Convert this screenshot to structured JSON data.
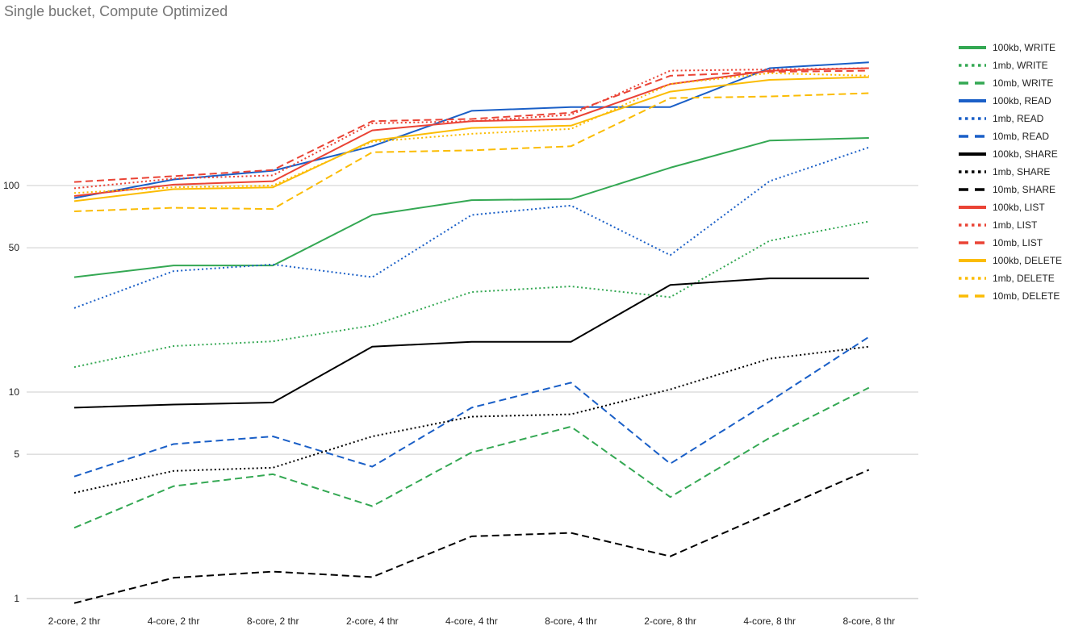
{
  "chart_data": {
    "type": "line",
    "title": "Single bucket, Compute Optimized",
    "xlabel": "",
    "ylabel": "",
    "y_scale": "log",
    "ylim": [
      0.9,
      400
    ],
    "y_ticks": [
      1,
      5,
      10,
      50,
      100
    ],
    "grid": true,
    "legend_position": "right",
    "categories": [
      "2-core, 2 thr",
      "4-core, 2 thr",
      "8-core, 2 thr",
      "2-core, 4 thr",
      "4-core, 4 thr",
      "8-core, 4 thr",
      "2-core, 8 thr",
      "4-core, 8 thr",
      "8-core, 8 thr"
    ],
    "series": [
      {
        "name": "100kb, WRITE",
        "color": "#34a853",
        "dash": "solid",
        "values": [
          36,
          41,
          41,
          72,
          85,
          86,
          122,
          165,
          170
        ]
      },
      {
        "name": "1mb, WRITE",
        "color": "#34a853",
        "dash": "dotted",
        "values": [
          13.2,
          16.7,
          17.6,
          21,
          30.5,
          32.5,
          28.8,
          54,
          67
        ]
      },
      {
        "name": "10mb, WRITE",
        "color": "#34a853",
        "dash": "dashed",
        "values": [
          2.2,
          3.5,
          4.0,
          2.8,
          5.1,
          6.8,
          3.1,
          6.0,
          10.5
        ]
      },
      {
        "name": "100kb, READ",
        "color": "#1a5fc7",
        "dash": "solid",
        "values": [
          87,
          107,
          118,
          155,
          230,
          240,
          240,
          370,
          395
        ]
      },
      {
        "name": "1mb, READ",
        "color": "#1a5fc7",
        "dash": "dotted",
        "values": [
          25.5,
          38.5,
          41.5,
          36,
          72,
          80,
          46,
          105,
          153
        ]
      },
      {
        "name": "10mb, READ",
        "color": "#1a5fc7",
        "dash": "dashed",
        "values": [
          3.9,
          5.6,
          6.1,
          4.35,
          8.4,
          11.1,
          4.5,
          9.0,
          18.5
        ]
      },
      {
        "name": "100kb, SHARE",
        "color": "#000000",
        "dash": "solid",
        "values": [
          8.4,
          8.7,
          8.9,
          16.6,
          17.5,
          17.5,
          33,
          35.5,
          35.5
        ]
      },
      {
        "name": "1mb, SHARE",
        "color": "#000000",
        "dash": "dotted",
        "values": [
          3.25,
          4.15,
          4.3,
          6.1,
          7.6,
          7.8,
          10.3,
          14.5,
          16.6
        ]
      },
      {
        "name": "10mb, SHARE",
        "color": "#000000",
        "dash": "dashed",
        "values": [
          0.95,
          1.26,
          1.35,
          1.27,
          2.0,
          2.08,
          1.6,
          2.6,
          4.2
        ]
      },
      {
        "name": "100kb, LIST",
        "color": "#ea4335",
        "dash": "solid",
        "values": [
          89,
          101,
          105,
          185,
          205,
          210,
          310,
          360,
          370
        ]
      },
      {
        "name": "1mb, LIST",
        "color": "#ea4335",
        "dash": "dotted",
        "values": [
          97,
          108,
          112,
          200,
          205,
          220,
          360,
          365,
          370
        ]
      },
      {
        "name": "10mb, LIST",
        "color": "#ea4335",
        "dash": "dashed",
        "values": [
          104,
          111,
          119,
          205,
          210,
          225,
          340,
          355,
          360
        ]
      },
      {
        "name": "100kb, DELETE",
        "color": "#fbbc04",
        "dash": "solid",
        "values": [
          84,
          96,
          98,
          165,
          190,
          195,
          285,
          325,
          335
        ]
      },
      {
        "name": "1mb, DELETE",
        "color": "#fbbc04",
        "dash": "dotted",
        "values": [
          92,
          98,
          100,
          163,
          178,
          188,
          310,
          350,
          340
        ]
      },
      {
        "name": "10mb, DELETE",
        "color": "#fbbc04",
        "dash": "dashed",
        "values": [
          75,
          78,
          77,
          145,
          148,
          155,
          265,
          270,
          280
        ]
      }
    ]
  }
}
